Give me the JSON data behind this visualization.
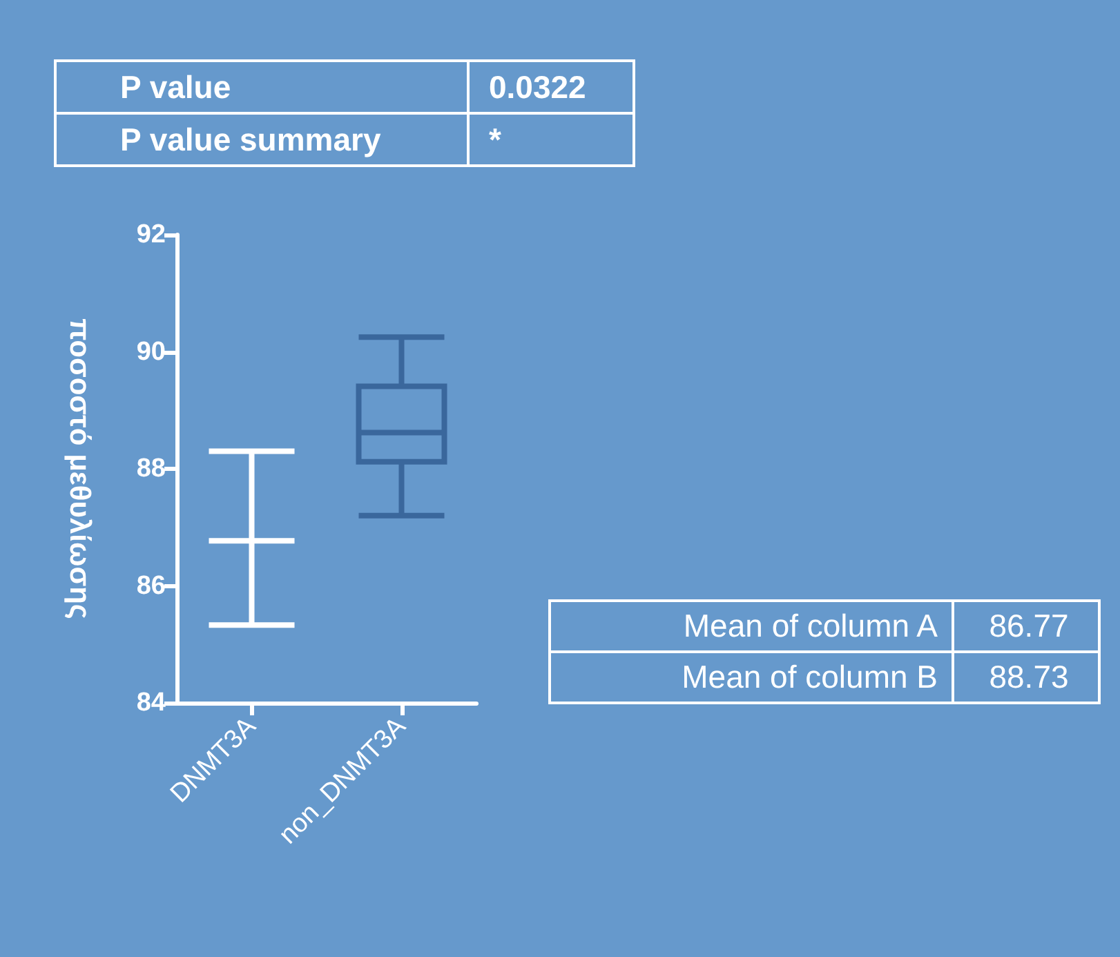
{
  "chart_data": {
    "type": "box",
    "ylabel": "ποσοστό μεθυλίωσης",
    "categories": [
      "DNMT3A",
      "non_DNMT3A"
    ],
    "boxes": [
      {
        "low": 85.33,
        "q1": 86.77,
        "median": 86.77,
        "q3": 86.77,
        "high": 88.3
      },
      {
        "low": 87.2,
        "q1": 88.12,
        "median": 88.62,
        "q3": 89.41,
        "high": 90.25
      }
    ],
    "colors": [
      "#ffffff",
      "#3a679c"
    ],
    "ylim": [
      84,
      92
    ],
    "yticks": [
      84,
      86,
      88,
      90,
      92
    ],
    "grid": false,
    "annotations": [
      "P value",
      "0.0322",
      "P value summary",
      "*",
      "Mean of column A",
      "86.77",
      "Mean of column B",
      "88.73"
    ]
  }
}
